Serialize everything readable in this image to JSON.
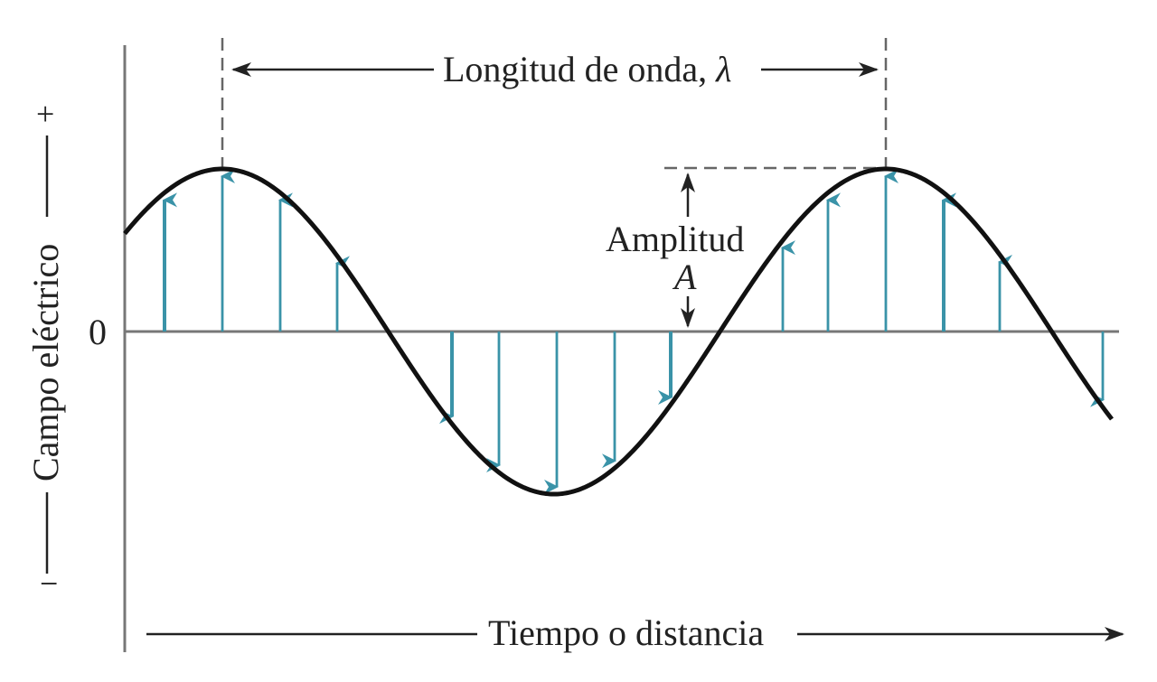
{
  "wavelength_label": "Longitud de onda, ",
  "wavelength_symbol": "λ",
  "amplitude_label": "Amplitud",
  "amplitude_symbol": "A",
  "y_axis": {
    "label": "Campo eléctrico",
    "zero_label": "0",
    "plus_label": "+",
    "minus_label": "−"
  },
  "x_axis_label": "Tiempo o distancia",
  "colors": {
    "wave": "#111111",
    "field_arrow": "#3a93a8",
    "axis": "#777777",
    "annotation": "#222222",
    "dashed": "#666666"
  }
}
